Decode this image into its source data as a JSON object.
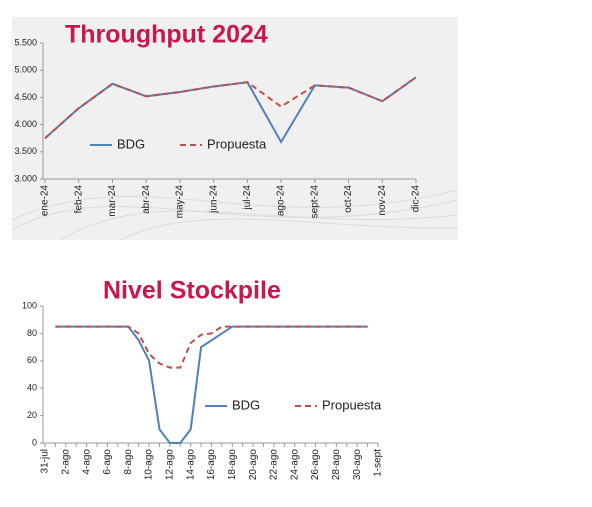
{
  "chart_data": [
    {
      "type": "line",
      "title": "Throughput 2024",
      "categories": [
        "ene-24",
        "feb-24",
        "mar-24",
        "abr-24",
        "may-24",
        "jun-24",
        "jul-24",
        "ago-24",
        "sept-24",
        "oct-24",
        "nov-24",
        "dic-24"
      ],
      "series": [
        {
          "name": "BDG",
          "color": "#4f81bd",
          "values": [
            3750,
            4300,
            4750,
            4520,
            4600,
            4700,
            4780,
            3680,
            4720,
            4680,
            4430,
            4870
          ]
        },
        {
          "name": "Propuesta",
          "color": "#c0504d",
          "values": [
            3750,
            4300,
            4750,
            4520,
            4600,
            4700,
            4780,
            4330,
            4720,
            4680,
            4430,
            4870
          ]
        }
      ],
      "ylim": [
        3000,
        5500
      ],
      "yticks": [
        {
          "value": 3000,
          "label": "3.000"
        },
        {
          "value": 3500,
          "label": "3.500"
        },
        {
          "value": 4000,
          "label": "4.000"
        },
        {
          "value": 4500,
          "label": "4.500"
        },
        {
          "value": 5000,
          "label": "5.000"
        },
        {
          "value": 5500,
          "label": "5.500"
        }
      ],
      "grid": false
    },
    {
      "type": "line",
      "title": "Nivel Stockpile",
      "categories": [
        "31-jul",
        null,
        "2-ago",
        null,
        "4-ago",
        null,
        "6-ago",
        null,
        "8-ago",
        null,
        "10-ago",
        null,
        "12-ago",
        null,
        "14-ago",
        null,
        "16-ago",
        null,
        "18-ago",
        null,
        "20-ago",
        null,
        "22-ago",
        null,
        "24-ago",
        null,
        "26-ago",
        null,
        "28-ago",
        null,
        "30-ago",
        null,
        "1-sept"
      ],
      "series": [
        {
          "name": "BDG",
          "color": "#4f81bd",
          "values": [
            null,
            85,
            85,
            85,
            85,
            85,
            85,
            85,
            85,
            75,
            60,
            10,
            0,
            0,
            10,
            70,
            75,
            80,
            85,
            85,
            85,
            85,
            85,
            85,
            85,
            85,
            85,
            85,
            85,
            85,
            85,
            85,
            null
          ]
        },
        {
          "name": "Propuesta",
          "color": "#c0504d",
          "values": [
            null,
            85,
            85,
            85,
            85,
            85,
            85,
            85,
            85,
            80,
            65,
            58,
            55,
            55,
            73,
            79,
            80,
            85,
            85,
            85,
            85,
            85,
            85,
            85,
            85,
            85,
            85,
            85,
            85,
            85,
            85,
            85,
            null
          ]
        }
      ],
      "ylim": [
        0,
        100
      ],
      "yticks": [
        0,
        20,
        40,
        60,
        80,
        100
      ],
      "grid": false
    }
  ]
}
